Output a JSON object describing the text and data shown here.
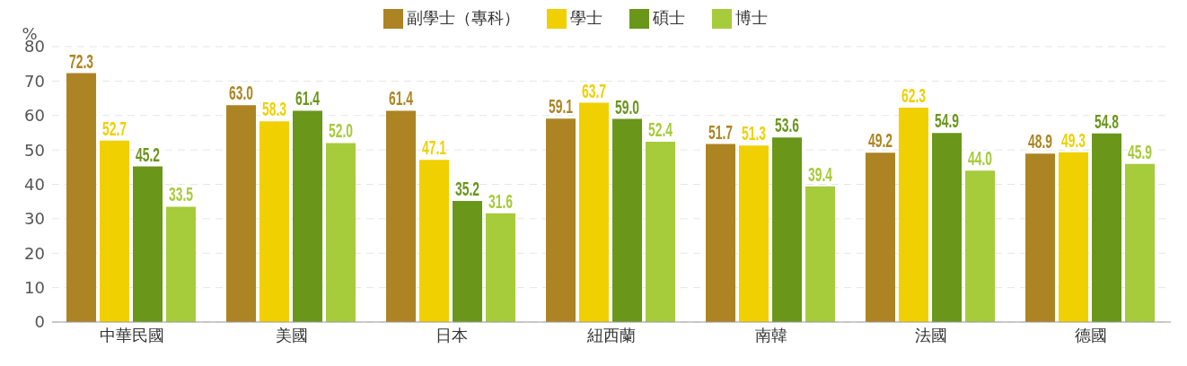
{
  "chart_data": {
    "type": "bar",
    "ylabel": "%",
    "categories": [
      "中華民國",
      "美國",
      "日本",
      "紐西蘭",
      "南韓",
      "法國",
      "德國"
    ],
    "series": [
      {
        "name": "副學士（專科）",
        "color": "#ad8423",
        "values": [
          72.3,
          63.0,
          61.4,
          59.1,
          51.7,
          49.2,
          48.9
        ],
        "value_labels": [
          "72.3",
          "63.0",
          "61.4",
          "59.1",
          "51.7",
          "49.2",
          "48.9"
        ]
      },
      {
        "name": "學士",
        "color": "#f0d000",
        "values": [
          52.7,
          58.3,
          47.1,
          63.7,
          51.3,
          62.3,
          49.3
        ],
        "value_labels": [
          "52.7",
          "58.3",
          "47.1",
          "63.7",
          "51.3",
          "62.3",
          "49.3"
        ]
      },
      {
        "name": "碩士",
        "color": "#6a961a",
        "values": [
          45.2,
          61.4,
          35.2,
          59.0,
          53.6,
          54.9,
          54.8
        ],
        "value_labels": [
          "45.2",
          "61.4",
          "35.2",
          "59.0",
          "53.6",
          "54.9",
          "54.8"
        ]
      },
      {
        "name": "博士",
        "color": "#a6cb3b",
        "values": [
          33.5,
          52.0,
          31.6,
          52.4,
          39.4,
          44.0,
          45.9
        ],
        "value_labels": [
          "33.5",
          "52.0",
          "31.6",
          "52.4",
          "39.4",
          "44.0",
          "45.9"
        ]
      }
    ],
    "ylim": [
      0,
      80
    ],
    "yticks": [
      0,
      10,
      20,
      30,
      40,
      50,
      60,
      70,
      80
    ],
    "grid": "y",
    "legend": "top"
  }
}
